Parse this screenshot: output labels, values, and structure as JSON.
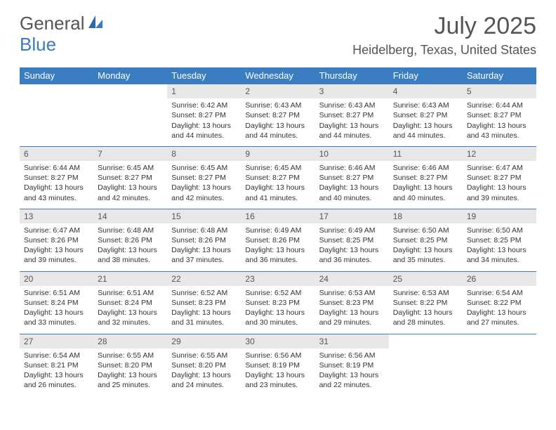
{
  "brand": {
    "part1": "General",
    "part2": "Blue"
  },
  "title": "July 2025",
  "location": "Heidelberg, Texas, United States",
  "colors": {
    "header_bg": "#3a7ec1",
    "header_text": "#ffffff",
    "daynum_bg": "#e8e8e8",
    "text": "#333333",
    "muted": "#555555",
    "row_rule": "#3a7ec1"
  },
  "typography": {
    "title_fontsize": 34,
    "location_fontsize": 18,
    "weekday_fontsize": 13,
    "daynum_fontsize": 12,
    "body_fontsize": 10.5
  },
  "weekdays": [
    "Sunday",
    "Monday",
    "Tuesday",
    "Wednesday",
    "Thursday",
    "Friday",
    "Saturday"
  ],
  "weeks": [
    [
      null,
      null,
      {
        "n": "1",
        "sunrise": "Sunrise: 6:42 AM",
        "sunset": "Sunset: 8:27 PM",
        "daylight": "Daylight: 13 hours and 44 minutes."
      },
      {
        "n": "2",
        "sunrise": "Sunrise: 6:43 AM",
        "sunset": "Sunset: 8:27 PM",
        "daylight": "Daylight: 13 hours and 44 minutes."
      },
      {
        "n": "3",
        "sunrise": "Sunrise: 6:43 AM",
        "sunset": "Sunset: 8:27 PM",
        "daylight": "Daylight: 13 hours and 44 minutes."
      },
      {
        "n": "4",
        "sunrise": "Sunrise: 6:43 AM",
        "sunset": "Sunset: 8:27 PM",
        "daylight": "Daylight: 13 hours and 44 minutes."
      },
      {
        "n": "5",
        "sunrise": "Sunrise: 6:44 AM",
        "sunset": "Sunset: 8:27 PM",
        "daylight": "Daylight: 13 hours and 43 minutes."
      }
    ],
    [
      {
        "n": "6",
        "sunrise": "Sunrise: 6:44 AM",
        "sunset": "Sunset: 8:27 PM",
        "daylight": "Daylight: 13 hours and 43 minutes."
      },
      {
        "n": "7",
        "sunrise": "Sunrise: 6:45 AM",
        "sunset": "Sunset: 8:27 PM",
        "daylight": "Daylight: 13 hours and 42 minutes."
      },
      {
        "n": "8",
        "sunrise": "Sunrise: 6:45 AM",
        "sunset": "Sunset: 8:27 PM",
        "daylight": "Daylight: 13 hours and 42 minutes."
      },
      {
        "n": "9",
        "sunrise": "Sunrise: 6:45 AM",
        "sunset": "Sunset: 8:27 PM",
        "daylight": "Daylight: 13 hours and 41 minutes."
      },
      {
        "n": "10",
        "sunrise": "Sunrise: 6:46 AM",
        "sunset": "Sunset: 8:27 PM",
        "daylight": "Daylight: 13 hours and 40 minutes."
      },
      {
        "n": "11",
        "sunrise": "Sunrise: 6:46 AM",
        "sunset": "Sunset: 8:27 PM",
        "daylight": "Daylight: 13 hours and 40 minutes."
      },
      {
        "n": "12",
        "sunrise": "Sunrise: 6:47 AM",
        "sunset": "Sunset: 8:27 PM",
        "daylight": "Daylight: 13 hours and 39 minutes."
      }
    ],
    [
      {
        "n": "13",
        "sunrise": "Sunrise: 6:47 AM",
        "sunset": "Sunset: 8:26 PM",
        "daylight": "Daylight: 13 hours and 39 minutes."
      },
      {
        "n": "14",
        "sunrise": "Sunrise: 6:48 AM",
        "sunset": "Sunset: 8:26 PM",
        "daylight": "Daylight: 13 hours and 38 minutes."
      },
      {
        "n": "15",
        "sunrise": "Sunrise: 6:48 AM",
        "sunset": "Sunset: 8:26 PM",
        "daylight": "Daylight: 13 hours and 37 minutes."
      },
      {
        "n": "16",
        "sunrise": "Sunrise: 6:49 AM",
        "sunset": "Sunset: 8:26 PM",
        "daylight": "Daylight: 13 hours and 36 minutes."
      },
      {
        "n": "17",
        "sunrise": "Sunrise: 6:49 AM",
        "sunset": "Sunset: 8:25 PM",
        "daylight": "Daylight: 13 hours and 36 minutes."
      },
      {
        "n": "18",
        "sunrise": "Sunrise: 6:50 AM",
        "sunset": "Sunset: 8:25 PM",
        "daylight": "Daylight: 13 hours and 35 minutes."
      },
      {
        "n": "19",
        "sunrise": "Sunrise: 6:50 AM",
        "sunset": "Sunset: 8:25 PM",
        "daylight": "Daylight: 13 hours and 34 minutes."
      }
    ],
    [
      {
        "n": "20",
        "sunrise": "Sunrise: 6:51 AM",
        "sunset": "Sunset: 8:24 PM",
        "daylight": "Daylight: 13 hours and 33 minutes."
      },
      {
        "n": "21",
        "sunrise": "Sunrise: 6:51 AM",
        "sunset": "Sunset: 8:24 PM",
        "daylight": "Daylight: 13 hours and 32 minutes."
      },
      {
        "n": "22",
        "sunrise": "Sunrise: 6:52 AM",
        "sunset": "Sunset: 8:23 PM",
        "daylight": "Daylight: 13 hours and 31 minutes."
      },
      {
        "n": "23",
        "sunrise": "Sunrise: 6:52 AM",
        "sunset": "Sunset: 8:23 PM",
        "daylight": "Daylight: 13 hours and 30 minutes."
      },
      {
        "n": "24",
        "sunrise": "Sunrise: 6:53 AM",
        "sunset": "Sunset: 8:23 PM",
        "daylight": "Daylight: 13 hours and 29 minutes."
      },
      {
        "n": "25",
        "sunrise": "Sunrise: 6:53 AM",
        "sunset": "Sunset: 8:22 PM",
        "daylight": "Daylight: 13 hours and 28 minutes."
      },
      {
        "n": "26",
        "sunrise": "Sunrise: 6:54 AM",
        "sunset": "Sunset: 8:22 PM",
        "daylight": "Daylight: 13 hours and 27 minutes."
      }
    ],
    [
      {
        "n": "27",
        "sunrise": "Sunrise: 6:54 AM",
        "sunset": "Sunset: 8:21 PM",
        "daylight": "Daylight: 13 hours and 26 minutes."
      },
      {
        "n": "28",
        "sunrise": "Sunrise: 6:55 AM",
        "sunset": "Sunset: 8:20 PM",
        "daylight": "Daylight: 13 hours and 25 minutes."
      },
      {
        "n": "29",
        "sunrise": "Sunrise: 6:55 AM",
        "sunset": "Sunset: 8:20 PM",
        "daylight": "Daylight: 13 hours and 24 minutes."
      },
      {
        "n": "30",
        "sunrise": "Sunrise: 6:56 AM",
        "sunset": "Sunset: 8:19 PM",
        "daylight": "Daylight: 13 hours and 23 minutes."
      },
      {
        "n": "31",
        "sunrise": "Sunrise: 6:56 AM",
        "sunset": "Sunset: 8:19 PM",
        "daylight": "Daylight: 13 hours and 22 minutes."
      },
      null,
      null
    ]
  ]
}
